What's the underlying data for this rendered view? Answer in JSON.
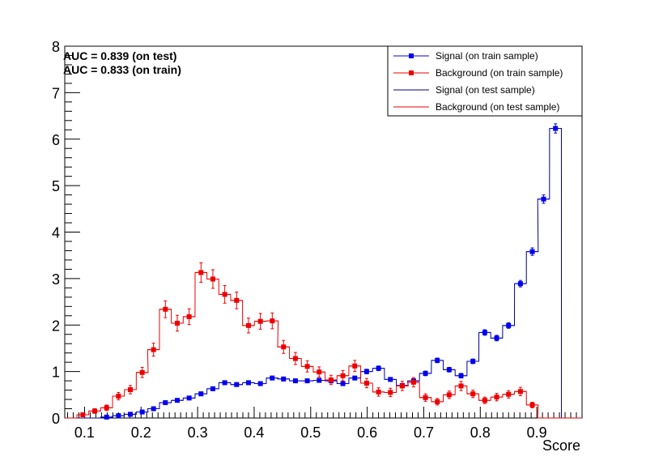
{
  "chart_data": {
    "type": "histogram",
    "xlabel": "Score",
    "ylabel": "",
    "xlim": [
      0.065,
      0.98
    ],
    "ylim": [
      0,
      8.0
    ],
    "x_ticks": [
      "0.1",
      "0.2",
      "0.3",
      "0.4",
      "0.5",
      "0.6",
      "0.7",
      "0.8",
      "0.9"
    ],
    "x_tick_values": [
      0.1,
      0.2,
      0.3,
      0.4,
      0.5,
      0.6,
      0.7,
      0.8,
      0.9
    ],
    "y_ticks": [
      "0",
      "1",
      "2",
      "3",
      "4",
      "5",
      "6",
      "7",
      "8"
    ],
    "y_tick_values": [
      0,
      1,
      2,
      3,
      4,
      5,
      6,
      7,
      8
    ],
    "bin_width": 0.0209,
    "bin_centers": [
      0.076,
      0.097,
      0.118,
      0.139,
      0.16,
      0.181,
      0.202,
      0.222,
      0.243,
      0.264,
      0.285,
      0.306,
      0.327,
      0.348,
      0.369,
      0.39,
      0.411,
      0.432,
      0.452,
      0.473,
      0.494,
      0.515,
      0.536,
      0.557,
      0.578,
      0.599,
      0.62,
      0.641,
      0.662,
      0.682,
      0.703,
      0.724,
      0.745,
      0.766,
      0.787,
      0.808,
      0.829,
      0.85,
      0.871,
      0.892,
      0.912,
      0.933,
      0.954,
      0.975
    ],
    "annotations": [
      "AUC = 0.839  (on test)",
      "AUC = 0.833 (on train)"
    ],
    "legend_position": "top-right",
    "series": [
      {
        "name": "Signal (on train sample)",
        "style": "markers",
        "color": "#0000ee",
        "values": [
          0.0,
          0.0,
          0.0,
          0.02,
          0.05,
          0.08,
          0.13,
          0.2,
          0.33,
          0.38,
          0.43,
          0.52,
          0.63,
          0.76,
          0.72,
          0.76,
          0.74,
          0.86,
          0.84,
          0.8,
          0.8,
          0.81,
          0.8,
          0.74,
          0.86,
          1.0,
          1.07,
          0.83,
          0.7,
          0.8,
          0.96,
          1.24,
          1.04,
          0.91,
          1.22,
          1.84,
          1.72,
          1.99,
          2.89,
          3.58,
          4.71,
          6.23,
          0.0,
          0.0
        ],
        "errors": [
          0.0,
          0.0,
          0.0,
          0.01,
          0.02,
          0.02,
          0.03,
          0.03,
          0.03,
          0.03,
          0.03,
          0.04,
          0.04,
          0.04,
          0.04,
          0.04,
          0.04,
          0.04,
          0.04,
          0.04,
          0.04,
          0.04,
          0.04,
          0.04,
          0.04,
          0.05,
          0.05,
          0.04,
          0.04,
          0.04,
          0.05,
          0.05,
          0.05,
          0.05,
          0.05,
          0.06,
          0.06,
          0.06,
          0.07,
          0.08,
          0.09,
          0.1,
          0.0,
          0.0
        ]
      },
      {
        "name": "Background (on train sample)",
        "style": "markers",
        "color": "#ee0000",
        "values": [
          0.0,
          0.07,
          0.15,
          0.22,
          0.47,
          0.61,
          0.98,
          1.47,
          2.34,
          2.04,
          2.18,
          3.13,
          2.99,
          2.66,
          2.53,
          1.99,
          2.08,
          2.09,
          1.53,
          1.28,
          1.11,
          0.99,
          0.82,
          0.91,
          1.12,
          0.75,
          0.56,
          0.55,
          0.69,
          0.77,
          0.44,
          0.35,
          0.5,
          0.69,
          0.52,
          0.38,
          0.45,
          0.51,
          0.57,
          0.28,
          0.0,
          0.0,
          0.0,
          0.0
        ],
        "errors": [
          0.0,
          0.03,
          0.05,
          0.06,
          0.08,
          0.09,
          0.11,
          0.14,
          0.18,
          0.17,
          0.17,
          0.21,
          0.2,
          0.19,
          0.18,
          0.16,
          0.17,
          0.17,
          0.14,
          0.13,
          0.12,
          0.11,
          0.1,
          0.11,
          0.12,
          0.1,
          0.09,
          0.09,
          0.1,
          0.1,
          0.08,
          0.07,
          0.08,
          0.1,
          0.08,
          0.07,
          0.08,
          0.08,
          0.09,
          0.06,
          0.0,
          0.0,
          0.0,
          0.0
        ]
      },
      {
        "name": "Signal (on test sample)",
        "style": "step",
        "color": "#00008b",
        "values": [
          0.0,
          0.0,
          0.0,
          0.02,
          0.05,
          0.08,
          0.13,
          0.2,
          0.33,
          0.38,
          0.43,
          0.52,
          0.63,
          0.76,
          0.72,
          0.76,
          0.74,
          0.86,
          0.84,
          0.8,
          0.8,
          0.81,
          0.8,
          0.74,
          0.86,
          1.0,
          1.07,
          0.83,
          0.7,
          0.8,
          0.96,
          1.24,
          1.04,
          0.91,
          1.22,
          1.84,
          1.72,
          1.99,
          2.89,
          3.58,
          4.71,
          6.23,
          0.0,
          0.0
        ]
      },
      {
        "name": "Background (on test sample)",
        "style": "step",
        "color": "#ee0000",
        "values": [
          0.0,
          0.07,
          0.15,
          0.22,
          0.47,
          0.61,
          0.98,
          1.47,
          2.34,
          2.04,
          2.18,
          3.13,
          2.99,
          2.66,
          2.53,
          1.99,
          2.08,
          2.09,
          1.53,
          1.28,
          1.11,
          0.99,
          0.82,
          0.91,
          1.12,
          0.75,
          0.56,
          0.55,
          0.69,
          0.77,
          0.44,
          0.35,
          0.5,
          0.69,
          0.52,
          0.38,
          0.45,
          0.51,
          0.57,
          0.28,
          0.0,
          0.0,
          0.0,
          0.0
        ]
      }
    ]
  },
  "legend": {
    "entries": [
      "Signal (on train sample)",
      "Background (on train sample)",
      "Signal (on test sample)",
      "Background (on test sample)"
    ]
  },
  "annotations": {
    "auc_test": "AUC = 0.839  (on test)",
    "auc_train": "AUC = 0.833 (on train)"
  },
  "axis": {
    "x_title": "Score"
  }
}
